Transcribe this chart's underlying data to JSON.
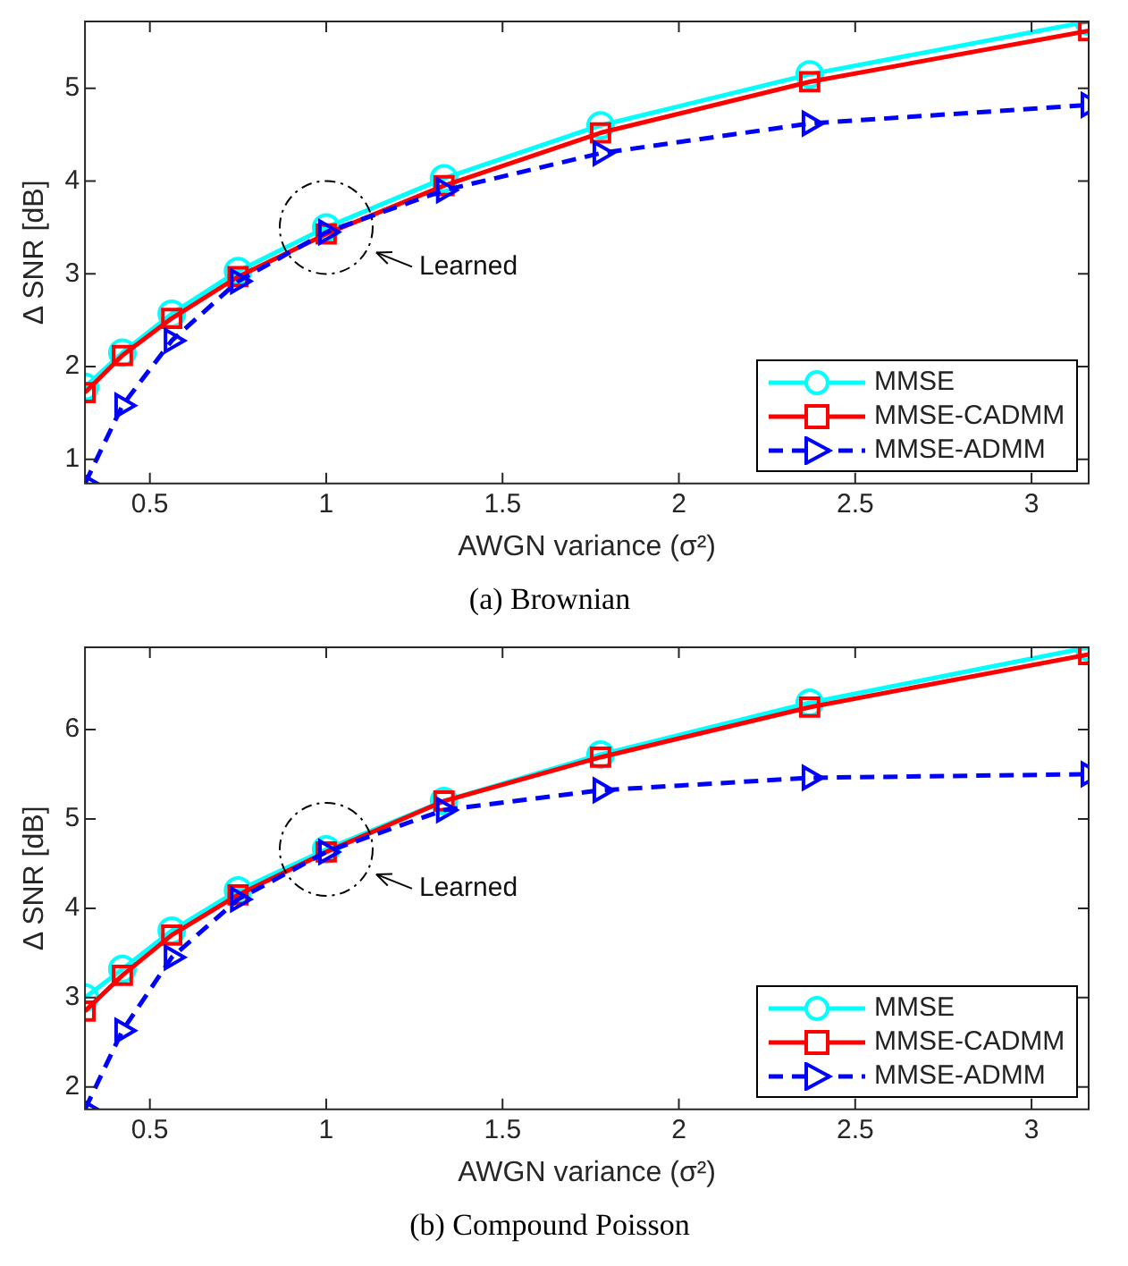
{
  "chart_data": [
    {
      "type": "line",
      "title": "(a) Brownian",
      "xlabel": "AWGN variance (σ²)",
      "ylabel": "Δ SNR [dB]",
      "x": [
        0.316,
        0.422,
        0.562,
        0.75,
        1,
        1.334,
        1.778,
        2.371,
        3.162
      ],
      "series": [
        {
          "name": "MMSE",
          "color": "#00ffff",
          "marker": "circle",
          "line_style": "solid",
          "values": [
            1.78,
            2.15,
            2.57,
            3.03,
            3.5,
            4.03,
            4.6,
            5.15,
            5.72
          ]
        },
        {
          "name": "MMSE-CADMM",
          "color": "#ff0000",
          "marker": "square",
          "line_style": "solid",
          "values": [
            1.72,
            2.12,
            2.52,
            2.97,
            3.43,
            3.95,
            4.52,
            5.07,
            5.62
          ]
        },
        {
          "name": "MMSE-ADMM",
          "color": "#0000ff",
          "marker": "triangle",
          "line_style": "dashed",
          "values": [
            0.74,
            1.58,
            2.28,
            2.92,
            3.45,
            3.9,
            4.3,
            4.62,
            4.82
          ]
        }
      ],
      "xlim": [
        0.316,
        3.162
      ],
      "xticks": [
        0.5,
        1,
        1.5,
        2,
        2.5,
        3
      ],
      "ylim": [
        0.74,
        5.72
      ],
      "yticks": [
        1,
        2,
        3,
        4,
        5
      ],
      "annotations": [
        "Learned"
      ],
      "grid": false,
      "legend": "bottom right"
    },
    {
      "type": "line",
      "title": "(b) Compound Poisson",
      "xlabel": "AWGN variance (σ²)",
      "ylabel": "Δ SNR [dB]",
      "x": [
        0.316,
        0.422,
        0.562,
        0.75,
        1,
        1.334,
        1.778,
        2.371,
        3.162
      ],
      "series": [
        {
          "name": "MMSE",
          "color": "#00ffff",
          "marker": "circle",
          "line_style": "solid",
          "values": [
            3.0,
            3.32,
            3.75,
            4.2,
            4.66,
            5.2,
            5.72,
            6.3,
            6.92
          ]
        },
        {
          "name": "MMSE-CADMM",
          "color": "#ff0000",
          "marker": "square",
          "line_style": "solid",
          "values": [
            2.85,
            3.25,
            3.7,
            4.15,
            4.63,
            5.2,
            5.69,
            6.25,
            6.84
          ]
        },
        {
          "name": "MMSE-ADMM",
          "color": "#0000ff",
          "marker": "triangle",
          "line_style": "dashed",
          "values": [
            1.75,
            2.63,
            3.45,
            4.1,
            4.63,
            5.1,
            5.32,
            5.46,
            5.5
          ]
        }
      ],
      "xlim": [
        0.316,
        3.162
      ],
      "xticks": [
        0.5,
        1,
        1.5,
        2,
        2.5,
        3
      ],
      "ylim": [
        1.75,
        6.92
      ],
      "yticks": [
        2,
        3,
        4,
        5,
        6
      ],
      "annotations": [
        "Learned"
      ],
      "grid": false,
      "legend": "bottom right"
    }
  ]
}
